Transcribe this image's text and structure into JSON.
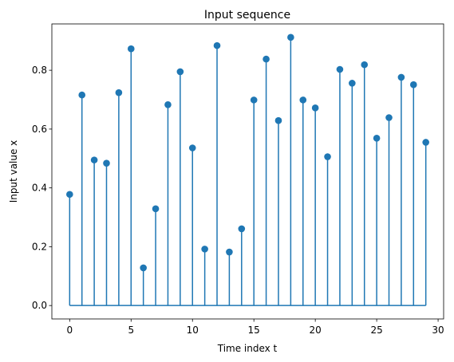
{
  "chart_data": {
    "type": "stem",
    "title": "Input sequence",
    "x_label": "Time index t",
    "y_label": "Input value x",
    "x": [
      0,
      1,
      2,
      3,
      4,
      5,
      6,
      7,
      8,
      9,
      10,
      11,
      12,
      13,
      14,
      15,
      16,
      17,
      18,
      19,
      20,
      21,
      22,
      23,
      24,
      25,
      26,
      27,
      28,
      29
    ],
    "values": [
      0.378,
      0.716,
      0.495,
      0.484,
      0.724,
      0.873,
      0.128,
      0.329,
      0.683,
      0.795,
      0.536,
      0.192,
      0.884,
      0.182,
      0.261,
      0.699,
      0.838,
      0.629,
      0.912,
      0.699,
      0.672,
      0.506,
      0.803,
      0.756,
      0.819,
      0.569,
      0.639,
      0.776,
      0.751,
      0.555
    ],
    "color": "#1f77b4",
    "xlim": [
      -1.45,
      30.45
    ],
    "ylim": [
      -0.0456,
      0.9576
    ],
    "xticks": [
      0,
      5,
      10,
      15,
      20,
      25,
      30
    ],
    "yticks": [
      {
        "value": 0,
        "label": "0.0"
      },
      0.2,
      0.4,
      0.6,
      0.8
    ]
  }
}
